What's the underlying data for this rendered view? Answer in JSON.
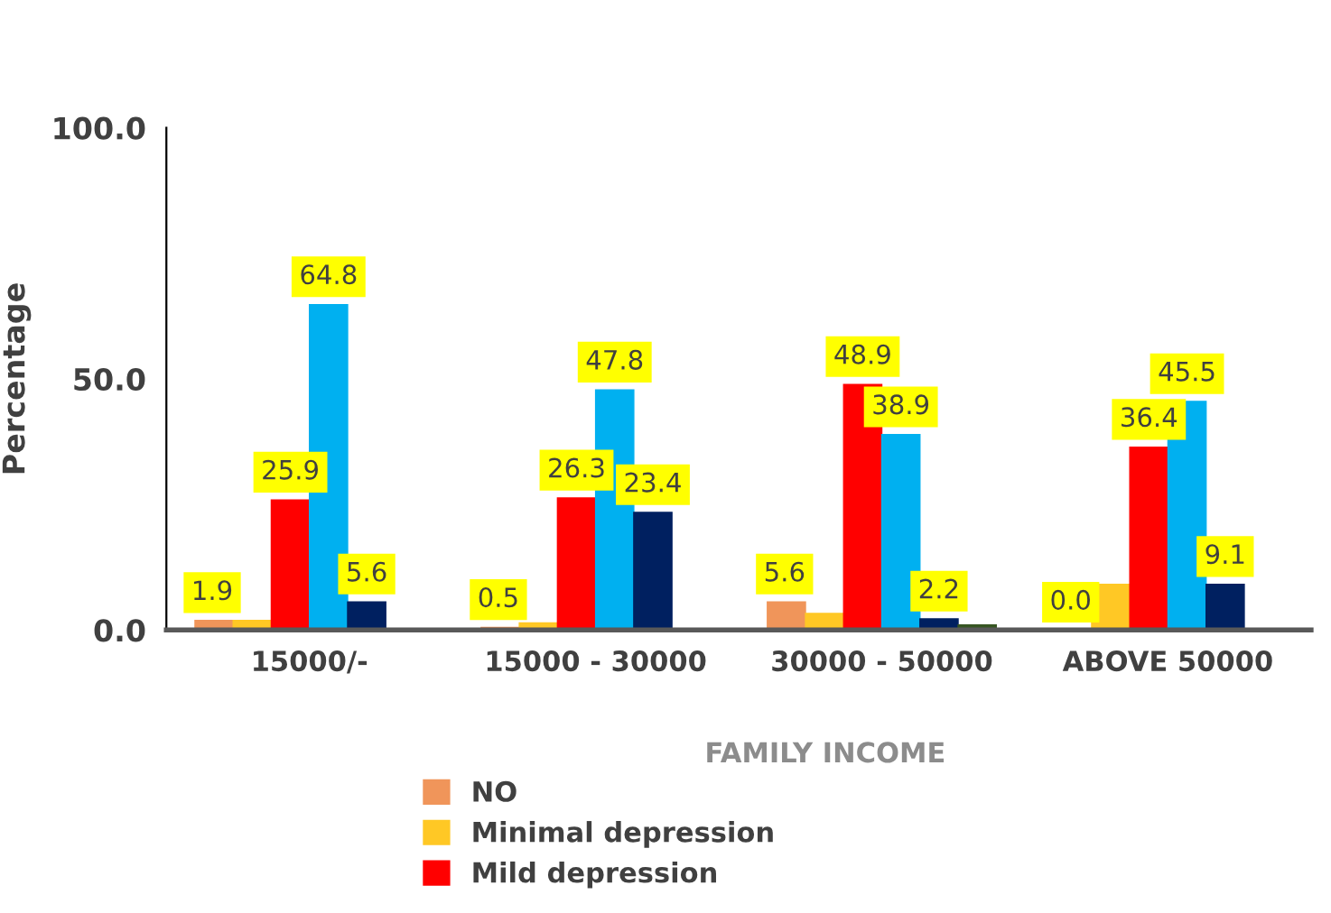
{
  "chart_data": {
    "type": "bar",
    "ylabel": "Percentage",
    "xlabel": "FAMILY INCOME",
    "categories": [
      "15000/-",
      "15000 - 30000",
      "30000 - 50000",
      "ABOVE 50000"
    ],
    "ylim": [
      0,
      100
    ],
    "yticks": [
      "0.0",
      "50.0",
      "100.0"
    ],
    "series": [
      {
        "name": "NO",
        "color": "#f0955a",
        "values": [
          1.9,
          0.5,
          5.6,
          0.0
        ],
        "value_labels": [
          "1.9",
          "0.5",
          "5.6",
          "0.0"
        ]
      },
      {
        "name": "Minimal depression",
        "color": "#ffc825",
        "values": [
          1.9,
          1.4,
          3.3,
          9.1
        ],
        "value_labels": [
          null,
          null,
          null,
          null
        ]
      },
      {
        "name": "Mild depression",
        "color": "#ff0000",
        "values": [
          25.9,
          26.3,
          48.9,
          36.4
        ],
        "value_labels": [
          "25.9",
          "26.3",
          "48.9",
          "36.4"
        ]
      },
      {
        "color": "#00b0f0",
        "values": [
          64.8,
          47.8,
          38.9,
          45.5
        ],
        "value_labels": [
          "64.8",
          "47.8",
          "38.9",
          "45.5"
        ]
      },
      {
        "color": "#002060",
        "values": [
          5.6,
          23.4,
          2.2,
          9.1
        ],
        "value_labels": [
          "5.6",
          "23.4",
          "2.2",
          "9.1"
        ]
      },
      {
        "color": "#375623",
        "values": [
          0.0,
          0.3,
          1.0,
          0.0
        ],
        "value_labels": [
          null,
          null,
          null,
          null
        ]
      }
    ],
    "legend": "bottom",
    "grid": false
  }
}
